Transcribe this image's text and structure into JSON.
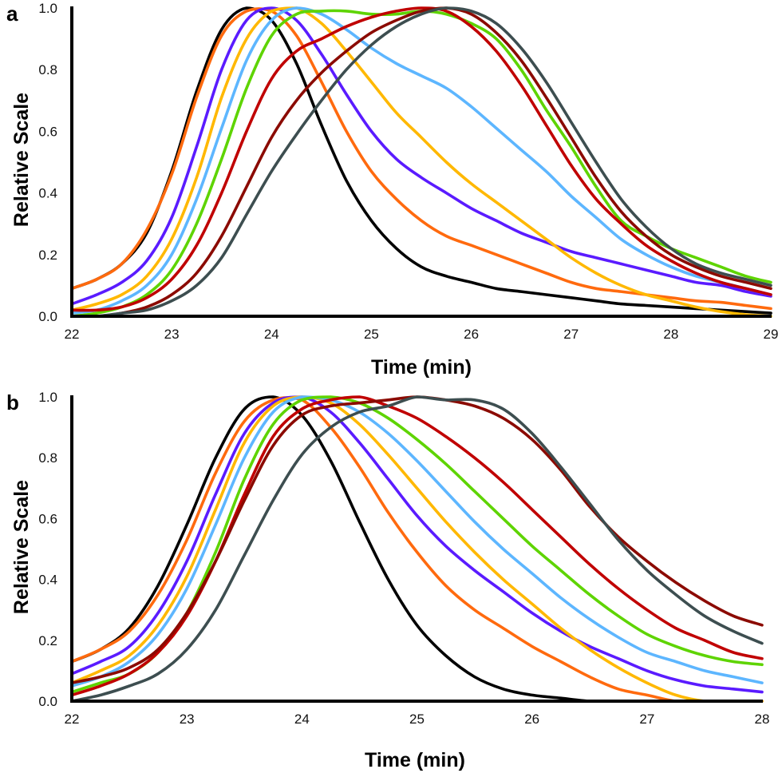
{
  "chart_data": [
    {
      "panel": "a",
      "type": "line",
      "title": "",
      "xlabel": "Time (min)",
      "ylabel": "Relative Scale",
      "xlim": [
        22,
        29
      ],
      "ylim": [
        0,
        1
      ],
      "xticks": [
        "22",
        "23",
        "24",
        "25",
        "26",
        "27",
        "28",
        "29"
      ],
      "yticks": [
        "0.0",
        "0.2",
        "0.4",
        "0.6",
        "0.8",
        "1.0"
      ],
      "grid": false,
      "legend": "none",
      "x": [
        22.0,
        22.25,
        22.5,
        22.75,
        23.0,
        23.25,
        23.5,
        23.75,
        24.0,
        24.25,
        24.5,
        24.75,
        25.0,
        25.25,
        25.5,
        25.75,
        26.0,
        26.25,
        26.5,
        26.75,
        27.0,
        27.25,
        27.5,
        27.75,
        28.0,
        28.25,
        28.5,
        28.75,
        29.0
      ],
      "series": [
        {
          "name": "series-1",
          "color": "#000000",
          "values": [
            0.09,
            0.12,
            0.17,
            0.27,
            0.47,
            0.73,
            0.93,
            1.0,
            0.96,
            0.82,
            0.62,
            0.44,
            0.31,
            0.22,
            0.16,
            0.13,
            0.11,
            0.09,
            0.08,
            0.07,
            0.06,
            0.05,
            0.04,
            0.035,
            0.03,
            0.025,
            0.02,
            0.015,
            0.01
          ]
        },
        {
          "name": "series-2",
          "color": "#FF6A0E",
          "values": [
            0.09,
            0.12,
            0.17,
            0.28,
            0.46,
            0.71,
            0.91,
            0.99,
            0.99,
            0.91,
            0.76,
            0.6,
            0.47,
            0.38,
            0.31,
            0.26,
            0.23,
            0.2,
            0.17,
            0.14,
            0.11,
            0.09,
            0.08,
            0.07,
            0.06,
            0.05,
            0.045,
            0.035,
            0.025
          ]
        },
        {
          "name": "series-3",
          "color": "#5A1BFF",
          "values": [
            0.04,
            0.07,
            0.11,
            0.18,
            0.32,
            0.55,
            0.8,
            0.96,
            1.0,
            0.96,
            0.85,
            0.72,
            0.6,
            0.51,
            0.45,
            0.4,
            0.35,
            0.31,
            0.27,
            0.24,
            0.21,
            0.19,
            0.17,
            0.15,
            0.13,
            0.11,
            0.1,
            0.08,
            0.065
          ]
        },
        {
          "name": "series-4",
          "color": "#FFB800",
          "values": [
            0.02,
            0.04,
            0.07,
            0.13,
            0.25,
            0.45,
            0.71,
            0.9,
            0.99,
            1.0,
            0.95,
            0.86,
            0.76,
            0.66,
            0.58,
            0.5,
            0.43,
            0.37,
            0.31,
            0.25,
            0.19,
            0.14,
            0.1,
            0.07,
            0.05,
            0.03,
            0.015,
            0.005,
            0.0
          ]
        },
        {
          "name": "series-5",
          "color": "#5DB6FF",
          "values": [
            0.01,
            0.02,
            0.05,
            0.1,
            0.2,
            0.38,
            0.61,
            0.83,
            0.96,
            1.0,
            0.98,
            0.93,
            0.87,
            0.82,
            0.78,
            0.74,
            0.68,
            0.61,
            0.54,
            0.47,
            0.39,
            0.32,
            0.25,
            0.2,
            0.16,
            0.13,
            0.11,
            0.09,
            0.07
          ]
        },
        {
          "name": "series-6",
          "color": "#5ED400",
          "values": [
            0.0,
            0.01,
            0.03,
            0.07,
            0.15,
            0.3,
            0.51,
            0.74,
            0.91,
            0.98,
            0.99,
            0.99,
            0.98,
            0.98,
            0.99,
            0.98,
            0.95,
            0.9,
            0.8,
            0.67,
            0.55,
            0.42,
            0.31,
            0.26,
            0.22,
            0.19,
            0.16,
            0.13,
            0.11
          ]
        },
        {
          "name": "series-7",
          "color": "#C00000",
          "values": [
            0.02,
            0.02,
            0.03,
            0.06,
            0.12,
            0.23,
            0.4,
            0.6,
            0.77,
            0.86,
            0.9,
            0.94,
            0.97,
            0.99,
            1.0,
            0.99,
            0.94,
            0.86,
            0.75,
            0.62,
            0.49,
            0.38,
            0.3,
            0.23,
            0.18,
            0.14,
            0.11,
            0.09,
            0.07
          ]
        },
        {
          "name": "series-8",
          "color": "#8B0A00",
          "values": [
            0.0,
            0.0,
            0.01,
            0.03,
            0.07,
            0.14,
            0.26,
            0.42,
            0.58,
            0.7,
            0.79,
            0.86,
            0.92,
            0.96,
            0.99,
            1.0,
            0.98,
            0.92,
            0.83,
            0.71,
            0.58,
            0.45,
            0.34,
            0.26,
            0.2,
            0.16,
            0.13,
            0.11,
            0.09
          ]
        },
        {
          "name": "series-9",
          "color": "#3D4E50",
          "values": [
            0.0,
            0.0,
            0.01,
            0.02,
            0.05,
            0.1,
            0.19,
            0.33,
            0.47,
            0.59,
            0.7,
            0.8,
            0.88,
            0.94,
            0.98,
            1.0,
            0.99,
            0.95,
            0.87,
            0.76,
            0.63,
            0.5,
            0.38,
            0.29,
            0.22,
            0.17,
            0.14,
            0.12,
            0.1
          ]
        }
      ]
    },
    {
      "panel": "b",
      "type": "line",
      "title": "",
      "xlabel": "Time (min)",
      "ylabel": "Relative Scale",
      "xlim": [
        22,
        28
      ],
      "ylim": [
        0,
        1
      ],
      "xticks": [
        "22",
        "23",
        "24",
        "25",
        "26",
        "27",
        "28"
      ],
      "yticks": [
        "0.0",
        "0.2",
        "0.4",
        "0.6",
        "0.8",
        "1.0"
      ],
      "grid": false,
      "legend": "none",
      "x": [
        22.0,
        22.25,
        22.5,
        22.75,
        23.0,
        23.25,
        23.5,
        23.75,
        24.0,
        24.25,
        24.5,
        24.75,
        25.0,
        25.25,
        25.5,
        25.75,
        26.0,
        26.25,
        26.5,
        26.75,
        27.0,
        27.25,
        27.5,
        27.75,
        28.0
      ],
      "series": [
        {
          "name": "series-1",
          "color": "#000000",
          "values": [
            0.13,
            0.17,
            0.24,
            0.38,
            0.58,
            0.8,
            0.96,
            1.0,
            0.94,
            0.79,
            0.59,
            0.4,
            0.25,
            0.15,
            0.08,
            0.04,
            0.02,
            0.01,
            0.0,
            0.0,
            0.0,
            0.0,
            0.0,
            0.0,
            0.0
          ]
        },
        {
          "name": "series-2",
          "color": "#FF6A0E",
          "values": [
            0.13,
            0.17,
            0.23,
            0.35,
            0.53,
            0.75,
            0.92,
            0.99,
            0.99,
            0.9,
            0.77,
            0.62,
            0.49,
            0.38,
            0.3,
            0.24,
            0.18,
            0.13,
            0.08,
            0.04,
            0.02,
            0.0,
            0.0,
            0.0,
            0.0
          ]
        },
        {
          "name": "series-3",
          "color": "#5A1BFF",
          "values": [
            0.09,
            0.13,
            0.18,
            0.29,
            0.46,
            0.68,
            0.88,
            0.98,
            1.0,
            0.95,
            0.85,
            0.73,
            0.61,
            0.51,
            0.43,
            0.36,
            0.29,
            0.23,
            0.18,
            0.14,
            0.1,
            0.07,
            0.05,
            0.04,
            0.03
          ]
        },
        {
          "name": "series-4",
          "color": "#FFB800",
          "values": [
            0.06,
            0.1,
            0.15,
            0.25,
            0.41,
            0.63,
            0.85,
            0.97,
            1.0,
            0.98,
            0.91,
            0.81,
            0.7,
            0.59,
            0.49,
            0.4,
            0.32,
            0.24,
            0.17,
            0.11,
            0.06,
            0.02,
            0.0,
            0.0,
            0.0
          ]
        },
        {
          "name": "series-5",
          "color": "#5DB6FF",
          "values": [
            0.05,
            0.08,
            0.13,
            0.22,
            0.37,
            0.58,
            0.8,
            0.95,
            1.0,
            0.99,
            0.95,
            0.88,
            0.79,
            0.69,
            0.59,
            0.5,
            0.42,
            0.34,
            0.27,
            0.21,
            0.16,
            0.13,
            0.1,
            0.08,
            0.06
          ]
        },
        {
          "name": "series-6",
          "color": "#5ED400",
          "values": [
            0.03,
            0.06,
            0.09,
            0.16,
            0.29,
            0.49,
            0.73,
            0.91,
            0.99,
            1.0,
            0.98,
            0.93,
            0.86,
            0.78,
            0.69,
            0.6,
            0.51,
            0.43,
            0.35,
            0.28,
            0.22,
            0.18,
            0.15,
            0.13,
            0.12
          ]
        },
        {
          "name": "series-7",
          "color": "#C00000",
          "values": [
            0.02,
            0.05,
            0.09,
            0.16,
            0.28,
            0.46,
            0.68,
            0.87,
            0.96,
            0.99,
            1.0,
            0.97,
            0.93,
            0.87,
            0.8,
            0.72,
            0.63,
            0.54,
            0.45,
            0.37,
            0.3,
            0.24,
            0.2,
            0.16,
            0.14
          ]
        },
        {
          "name": "series-8",
          "color": "#8B0A00",
          "values": [
            0.06,
            0.08,
            0.11,
            0.17,
            0.29,
            0.46,
            0.66,
            0.84,
            0.94,
            0.97,
            0.98,
            0.99,
            1.0,
            0.99,
            0.97,
            0.93,
            0.86,
            0.76,
            0.64,
            0.54,
            0.46,
            0.39,
            0.33,
            0.28,
            0.25
          ]
        },
        {
          "name": "series-9",
          "color": "#3D4E50",
          "values": [
            0.0,
            0.02,
            0.05,
            0.09,
            0.17,
            0.3,
            0.48,
            0.66,
            0.81,
            0.9,
            0.95,
            0.97,
            1.0,
            0.99,
            0.99,
            0.96,
            0.88,
            0.77,
            0.65,
            0.53,
            0.43,
            0.35,
            0.28,
            0.23,
            0.19
          ]
        }
      ]
    }
  ]
}
